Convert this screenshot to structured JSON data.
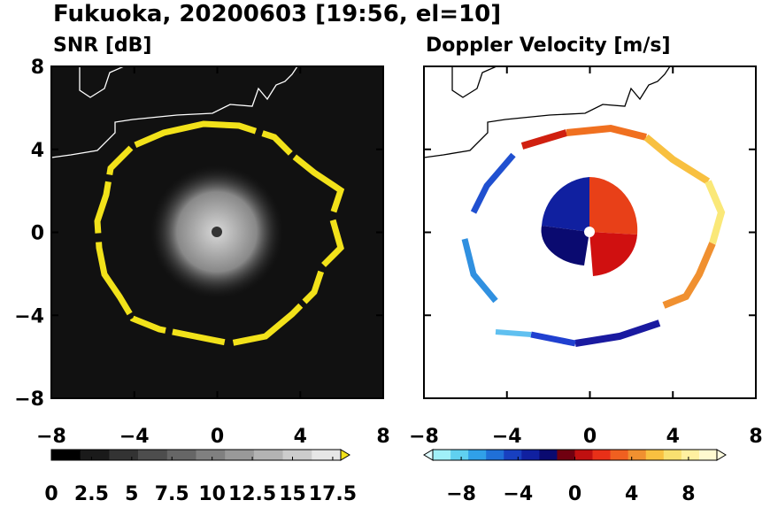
{
  "title": "Fukuoka, 20200603 [19:56, el=10]",
  "chart_data": [
    {
      "type": "heatmap",
      "title": "SNR [dB]",
      "xlim": [
        -8,
        8
      ],
      "ylim": [
        -8,
        8
      ],
      "xticks": [
        {
          "value": -8,
          "label": "−8"
        },
        {
          "value": -4,
          "label": "−4"
        },
        0,
        4,
        8
      ],
      "yticks": [
        {
          "value": -8,
          "label": "−8"
        },
        {
          "value": -4,
          "label": "−4"
        },
        0,
        4,
        8
      ],
      "colorbar": {
        "lim": [
          0,
          18
        ],
        "ticks": [
          0,
          2.5,
          5,
          7.5,
          10,
          12.5,
          15,
          17.5
        ],
        "colors": [
          "#000000",
          "#1a1a1a",
          "#333333",
          "#4d4d4d",
          "#666666",
          "#808080",
          "#999999",
          "#b3b3b3",
          "#cccccc",
          "#e6e6e6"
        ],
        "over_color": "#f2e21a"
      }
    },
    {
      "type": "heatmap",
      "title": "Doppler Velocity [m/s]",
      "xlim": [
        -8,
        8
      ],
      "ylim": [
        -8,
        8
      ],
      "xticks": [
        {
          "value": -8,
          "label": "−8"
        },
        {
          "value": -4,
          "label": "−4"
        },
        0,
        4,
        8
      ],
      "yticks": [
        {
          "value": -8,
          "label": "−8"
        },
        {
          "value": -4,
          "label": "−4"
        },
        0,
        4,
        8
      ],
      "colorbar": {
        "lim": [
          -10,
          10
        ],
        "ticks": [
          {
            "value": -8,
            "label": "−8"
          },
          {
            "value": -4,
            "label": "−4"
          },
          0,
          4,
          8
        ],
        "colors": [
          "#a0f0f8",
          "#60d0f0",
          "#30a0e8",
          "#2070d8",
          "#1840c0",
          "#1020a0",
          "#0a0a70",
          "#700010",
          "#c01010",
          "#e83018",
          "#f06020",
          "#f09030",
          "#f8c040",
          "#f8e070",
          "#fff0a0",
          "#fffad0"
        ],
        "under_color": "#e0fcff",
        "over_color": "#fffde0"
      }
    }
  ]
}
